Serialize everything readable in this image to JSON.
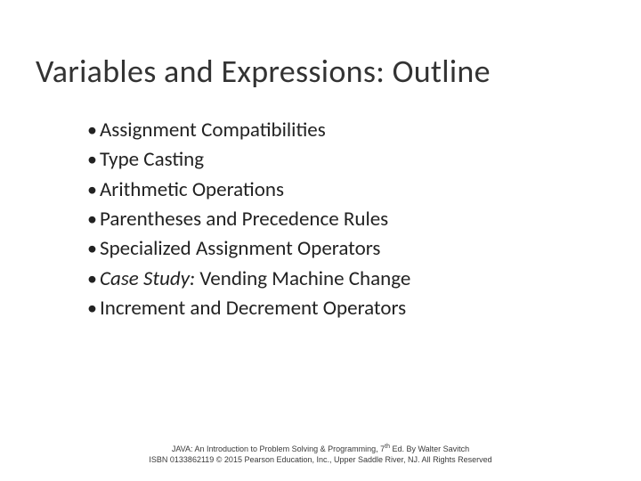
{
  "slide": {
    "title": "Variables and Expressions: Outline",
    "title_fontsize": 36,
    "title_color": "#333333",
    "bullets": [
      {
        "text": "Assignment Compatibilities",
        "italic": false
      },
      {
        "text": "Type Casting",
        "italic": false
      },
      {
        "text": "Arithmetic Operations",
        "italic": false
      },
      {
        "text": "Parentheses and Precedence Rules",
        "italic": false
      },
      {
        "text": "Specialized Assignment Operators",
        "italic": false
      },
      {
        "prefix": "Case Study:",
        "suffix": " Vending Machine Change",
        "italic_prefix": true
      },
      {
        "text": "Increment and Decrement Operators",
        "italic": false
      }
    ],
    "bullet_fontsize": 23,
    "bullet_color": "#222222",
    "background_color": "#ffffff"
  },
  "footer": {
    "line1_a": "JAVA: An Introduction to Problem Solving & Programming, 7",
    "line1_sup": "th",
    "line1_b": " Ed. By Walter Savitch",
    "line2": "ISBN 0133862119 © 2015 Pearson Education, Inc., Upper Saddle River, NJ. All Rights Reserved",
    "fontsize": 9,
    "color": "#3a3a3a"
  }
}
